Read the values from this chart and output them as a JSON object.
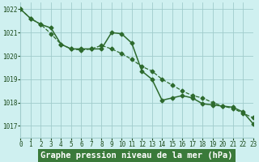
{
  "line_dashed": {
    "x": [
      0,
      1,
      2,
      3,
      4,
      5,
      6,
      7,
      8,
      9,
      10,
      11,
      12,
      13,
      14,
      15,
      16,
      17,
      18,
      19,
      20,
      21,
      22,
      23
    ],
    "y": [
      1022.0,
      1021.6,
      1021.35,
      1020.95,
      1020.5,
      1020.3,
      1020.25,
      1020.3,
      1020.45,
      1020.3,
      1020.1,
      1019.85,
      1019.55,
      1019.35,
      1019.0,
      1018.75,
      1018.5,
      1018.3,
      1018.2,
      1018.0,
      1017.85,
      1017.75,
      1017.55,
      1017.35
    ],
    "color": "#2d6a2d",
    "linestyle": "--",
    "linewidth": 0.9,
    "marker": "D",
    "markersize": 2.5
  },
  "line_solid": {
    "x": [
      0,
      1,
      2,
      3,
      4,
      5,
      6,
      7,
      8,
      9,
      10,
      11,
      12,
      13,
      14,
      15,
      16,
      17,
      18,
      19,
      20,
      21,
      22,
      23
    ],
    "y": [
      1022.0,
      1021.6,
      1021.35,
      1021.2,
      1020.5,
      1020.3,
      1020.3,
      1020.3,
      1020.3,
      1021.0,
      1020.95,
      1020.55,
      1019.35,
      1019.0,
      1018.1,
      1018.2,
      1018.3,
      1018.2,
      1017.95,
      1017.9,
      1017.85,
      1017.8,
      1017.6,
      1017.1
    ],
    "color": "#2d6a2d",
    "linestyle": "-",
    "linewidth": 1.1,
    "marker": "D",
    "markersize": 2.5
  },
  "background_color": "#cff0f0",
  "grid_color": "#a0cccc",
  "plot_area_bg": "#cff0f0",
  "xlabel": "Graphe pression niveau de la mer (hPa)",
  "xlabel_bg": "#3a7a3a",
  "xlabel_color": "#ffffff",
  "tick_color": "#1a4a1a",
  "tick_fontsize": 5.5,
  "xlabel_fontsize": 7.5,
  "xlim": [
    0,
    23
  ],
  "ylim": [
    1016.5,
    1022.3
  ],
  "yticks": [
    1017,
    1018,
    1019,
    1020,
    1021,
    1022
  ],
  "xticks": [
    0,
    1,
    2,
    3,
    4,
    5,
    6,
    7,
    8,
    9,
    10,
    11,
    12,
    13,
    14,
    15,
    16,
    17,
    18,
    19,
    20,
    21,
    22,
    23
  ]
}
